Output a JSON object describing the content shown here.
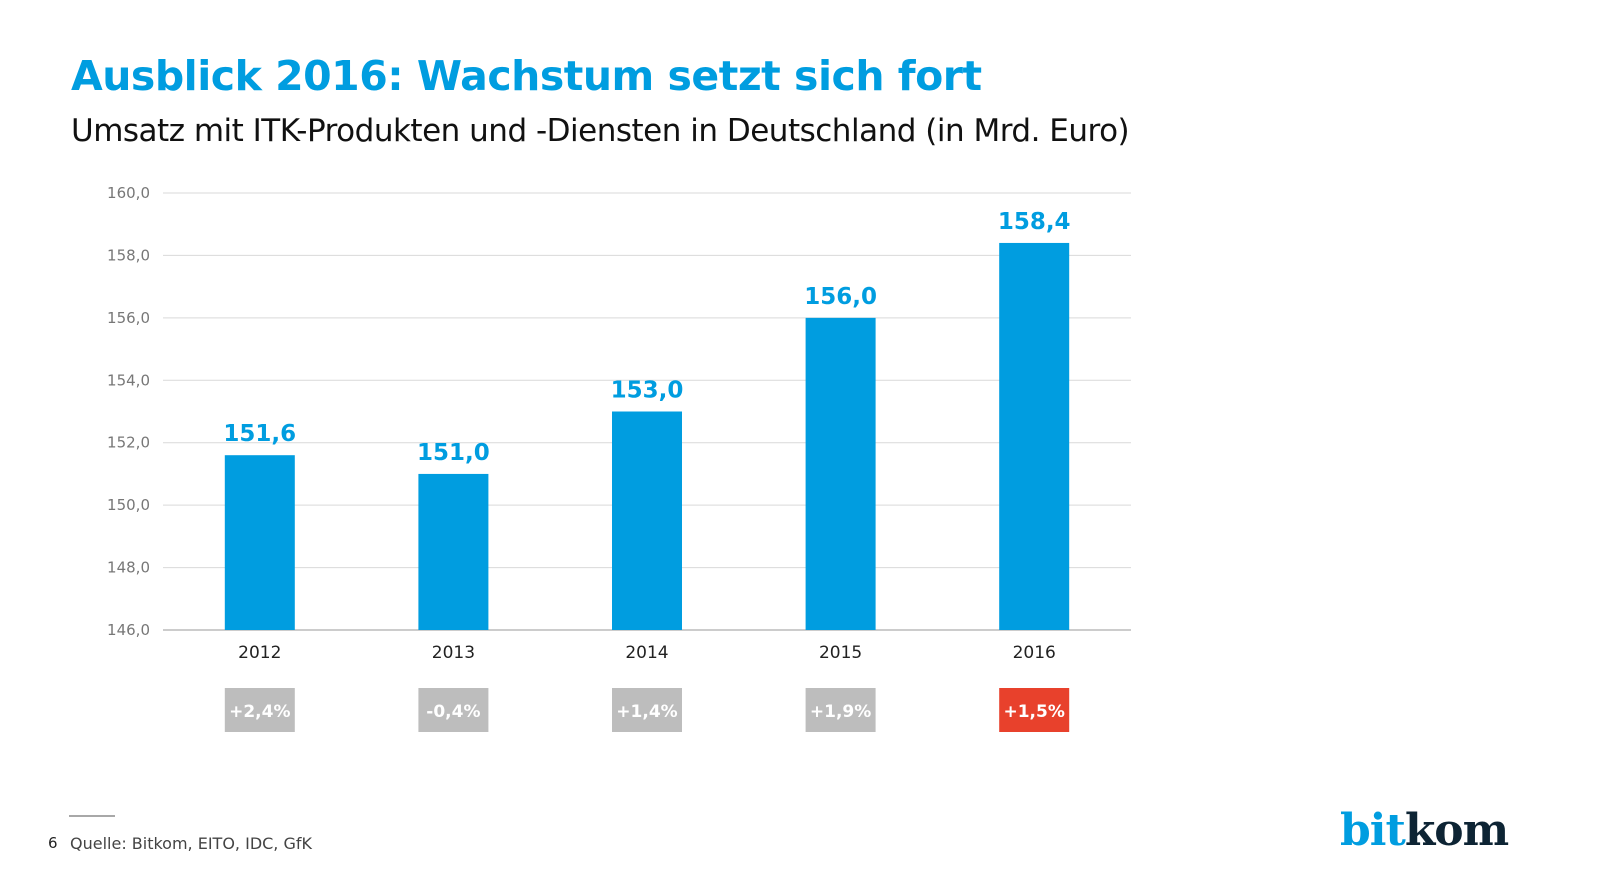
{
  "title": "Ausblick 2016: Wachstum setzt sich fort",
  "subtitle": "Umsatz mit ITK-Produkten und -Diensten in Deutschland (in Mrd. Euro)",
  "footer": {
    "page_number": "6",
    "source": "Quelle: Bitkom, EITO, IDC, GfK"
  },
  "logo": {
    "part1": "bit",
    "part2": "kom"
  },
  "colors": {
    "bar": "#009de0",
    "label": "#009de0",
    "growth_default": "#bdbdbd",
    "growth_highlight": "#e8412c",
    "grid": "#d9d9d9"
  },
  "chart_data": {
    "type": "bar",
    "title": "Ausblick 2016: Wachstum setzt sich fort",
    "subtitle": "Umsatz mit ITK-Produkten und -Diensten in Deutschland (in Mrd. Euro)",
    "xlabel": "",
    "ylabel": "",
    "categories": [
      "2012",
      "2013",
      "2014",
      "2015",
      "2016"
    ],
    "values": [
      151.6,
      151.0,
      153.0,
      156.0,
      158.4
    ],
    "value_labels": [
      "151,6",
      "151,0",
      "153,0",
      "156,0",
      "158,4"
    ],
    "ylim": [
      146,
      160
    ],
    "yticks": [
      146,
      148,
      150,
      152,
      154,
      156,
      158,
      160
    ],
    "ytick_labels": [
      "146,0",
      "148,0",
      "150,0",
      "152,0",
      "154,0",
      "156,0",
      "158,0",
      "160,0"
    ],
    "grid": true,
    "legend": "none",
    "growth_rates": [
      "+2,4%",
      "-0,4%",
      "+1,4%",
      "+1,9%",
      "+1,5%"
    ],
    "growth_highlight_index": 4
  }
}
